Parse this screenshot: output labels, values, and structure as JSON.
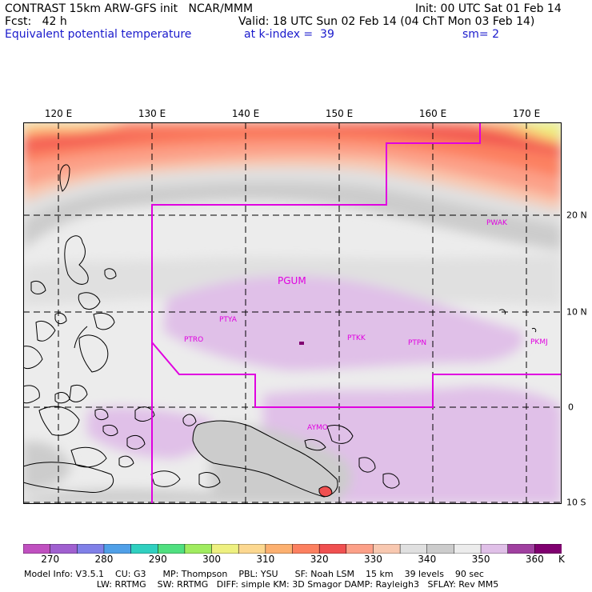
{
  "header": {
    "line1_left": "CONTRAST 15km ARW-GFS init   NCAR/MMM",
    "line1_right": "Init: 00 UTC Sat 01 Feb 14",
    "line2_left": "Fcst:   42 h",
    "line2_right": "Valid: 18 UTC Sun 02 Feb 14 (04 ChT Mon 03 Feb 14)",
    "line3_left": "Equivalent potential temperature",
    "line3_mid": "at k-index =  39",
    "line3_right": "sm= 2"
  },
  "lon_labels": [
    "120 E",
    "130 E",
    "140 E",
    "150 E",
    "160 E",
    "170 E"
  ],
  "lat_labels": [
    "20 N",
    "10 N",
    "0",
    "10 S"
  ],
  "stations": [
    "PGUM",
    "PTYA",
    "PTRO",
    "PTKK",
    "PTPN",
    "PKMJ",
    "PWAK",
    "AYMO"
  ],
  "colorbar": {
    "labels": [
      "270",
      "280",
      "290",
      "300",
      "310",
      "320",
      "330",
      "340",
      "350",
      "360"
    ],
    "unit": "K",
    "colors": [
      "#c050c0",
      "#a060d0",
      "#8080e8",
      "#50a0e8",
      "#30d0c0",
      "#50e080",
      "#a0ec60",
      "#eef080",
      "#fcd890",
      "#fcb070",
      "#fc8060",
      "#f05050",
      "#fca088",
      "#f8c8b0",
      "#e0e0e0",
      "#cccccc",
      "#ececec",
      "#e0c0e8",
      "#a040a0",
      "#800070"
    ]
  },
  "footer": {
    "line1": "Model Info: V3.5.1    CU: G3      MP: Thompson    PBL: YSU      SF: Noah LSM    15 km    39 levels    90 sec",
    "line2": "                          LW: RRTMG    SW: RRTMG   DIFF: simple KM: 3D Smagor DAMP: Rayleigh3   SFLAY: Rev MM5"
  }
}
